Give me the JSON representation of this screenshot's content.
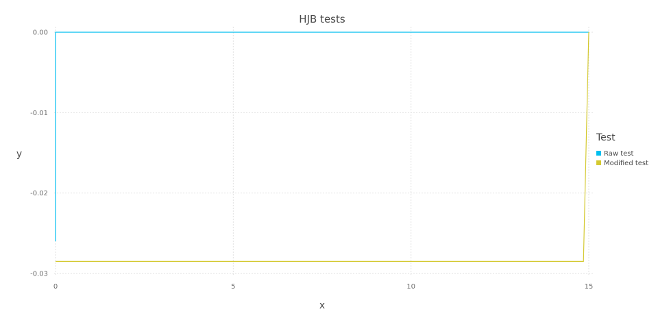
{
  "chart_data": {
    "type": "line",
    "title": "HJB tests",
    "xlabel": "x",
    "ylabel": "y",
    "xlim": [
      0,
      15
    ],
    "ylim": [
      -0.03,
      0.0
    ],
    "xticks": [
      0,
      5,
      10,
      15
    ],
    "xtick_labels": [
      "0",
      "5",
      "10",
      "15"
    ],
    "yticks": [
      0.0,
      -0.01,
      -0.02,
      -0.03
    ],
    "ytick_labels": [
      "0.00",
      "-0.01",
      "-0.02",
      "-0.03"
    ],
    "grid": true,
    "legend": {
      "title": "Test",
      "placement": "right"
    },
    "series": [
      {
        "name": "Raw test",
        "color": "#00bfef",
        "x": [
          0,
          0,
          15
        ],
        "y": [
          -0.026,
          0.0,
          0.0
        ]
      },
      {
        "name": "Modified test",
        "color": "#d4c930",
        "x": [
          0,
          14.85,
          15
        ],
        "y": [
          -0.0285,
          -0.0285,
          0.0
        ]
      }
    ]
  }
}
